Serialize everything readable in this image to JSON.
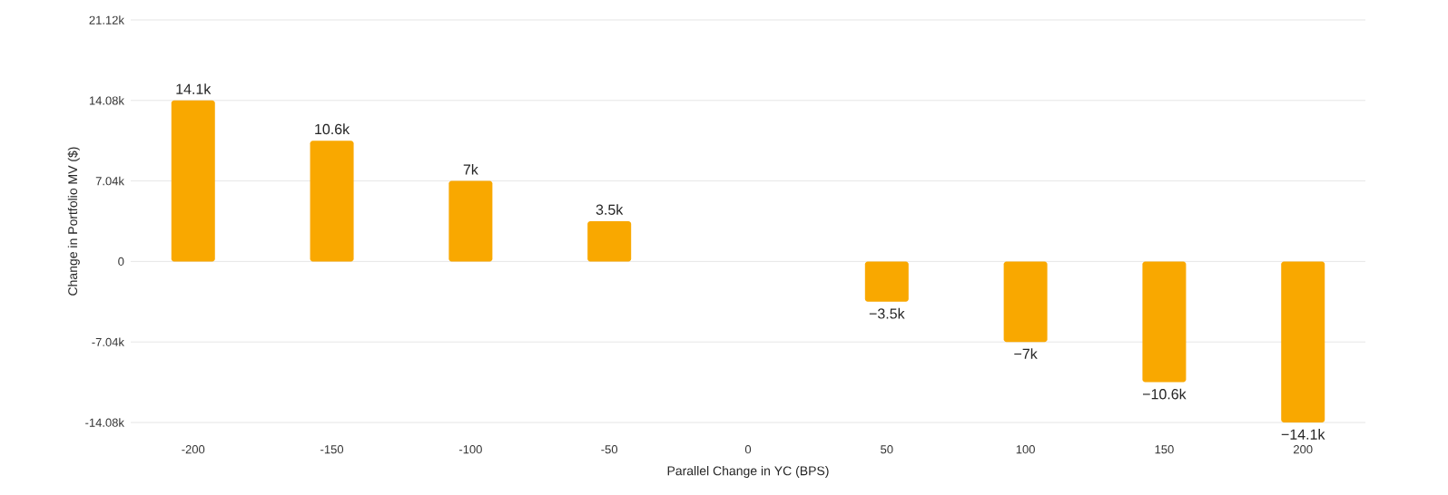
{
  "chart_data": {
    "type": "bar",
    "xlabel": "Parallel Change in YC (BPS)",
    "ylabel": "Change in Portfolio MV ($)",
    "categories": [
      "-200",
      "-150",
      "-100",
      "-50",
      "0",
      "50",
      "100",
      "150",
      "200"
    ],
    "values": [
      14080,
      10560,
      7040,
      3520,
      0,
      -3520,
      -7040,
      -10560,
      -14080
    ],
    "value_labels": [
      "14.1k",
      "10.6k",
      "7k",
      "3.5k",
      null,
      "−3.5k",
      "−7k",
      "−10.6k",
      "−14.1k"
    ],
    "color": "#f9a800",
    "ylim": [
      -14080,
      21120
    ],
    "yticks": [
      {
        "value": -14080,
        "label": "-14.08k"
      },
      {
        "value": -7040,
        "label": "-7.04k"
      },
      0,
      {
        "value": 7040,
        "label": "7.04k"
      },
      {
        "value": 14080,
        "label": "14.08k"
      },
      {
        "value": 21120,
        "label": "21.12k"
      }
    ],
    "grid": "y"
  }
}
